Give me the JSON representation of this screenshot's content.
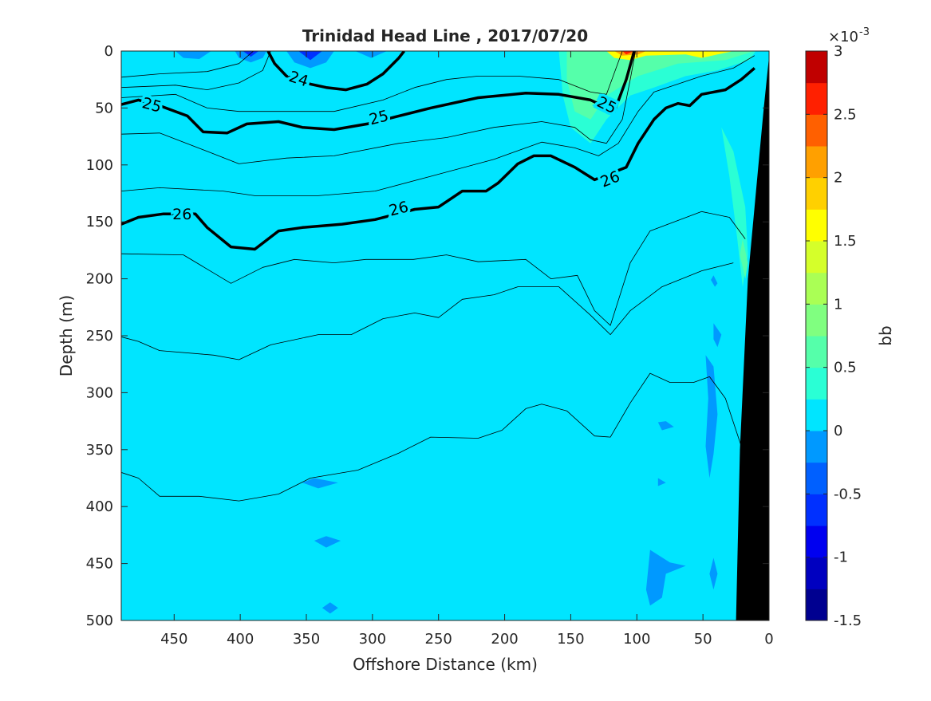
{
  "chart_data": {
    "type": "contour",
    "title": "Trinidad Head Line , 2017/07/20",
    "xlabel": "Offshore Distance (km)",
    "ylabel": "Depth (m)",
    "xlim": [
      490,
      0
    ],
    "xticks": [
      450,
      400,
      350,
      300,
      250,
      200,
      150,
      100,
      50,
      0
    ],
    "ylim": [
      0,
      500
    ],
    "yticks": [
      0,
      50,
      100,
      150,
      200,
      250,
      300,
      350,
      400,
      450,
      500
    ],
    "y_reversed": true,
    "colorbar": {
      "label": "bb",
      "scale_base": "×10",
      "scale_exponent": "-3",
      "clim": [
        -1.5,
        3
      ],
      "ticks": [
        -1.5,
        -1,
        -0.5,
        0,
        0.5,
        1,
        1.5,
        2,
        2.5,
        3
      ],
      "colors": [
        "#000090",
        "#0000c0",
        "#0000f0",
        "#0030ff",
        "#0060ff",
        "#0099ff",
        "#00e5ff",
        "#2affd5",
        "#55ffaa",
        "#80ff80",
        "#aaff55",
        "#d5ff2a",
        "#ffff00",
        "#ffd000",
        "#ffa000",
        "#ff6000",
        "#ff2000",
        "#c00000"
      ]
    },
    "field_value": 0.1,
    "patches": [
      {
        "value": -0.1,
        "x": [
          404,
          401,
          392,
          383,
          380
        ],
        "depth": [
          0,
          6,
          10,
          6,
          0
        ]
      },
      {
        "value": -0.6,
        "x": [
          398,
          392,
          386
        ],
        "depth": [
          0,
          5,
          0
        ]
      },
      {
        "value": -0.1,
        "x": [
          365,
          359,
          347,
          335,
          329
        ],
        "depth": [
          0,
          10,
          15,
          10,
          0
        ]
      },
      {
        "value": -0.6,
        "x": [
          356,
          347,
          338
        ],
        "depth": [
          0,
          8,
          0
        ]
      },
      {
        "value": -0.1,
        "x": [
          449,
          443,
          431,
          422
        ],
        "depth": [
          0,
          6,
          7,
          0
        ]
      },
      {
        "value": -0.1,
        "x": [
          313,
          301,
          289
        ],
        "depth": [
          0,
          6,
          0
        ]
      },
      {
        "value": 0.4,
        "x": [
          159,
          156,
          150,
          135,
          123,
          105,
          87,
          63,
          39,
          15,
          10
        ],
        "depth": [
          0,
          39,
          67,
          81,
          60,
          39,
          32,
          22,
          17,
          8,
          0
        ]
      },
      {
        "value": 0.7,
        "x": [
          153,
          153,
          147,
          135,
          123,
          99,
          69,
          33,
          11
        ],
        "depth": [
          0,
          25,
          53,
          60,
          39,
          22,
          11,
          8,
          0
        ]
      },
      {
        "value": 1.6,
        "x": [
          123,
          117,
          105,
          93,
          63,
          51,
          39,
          27
        ],
        "depth": [
          0,
          6,
          8,
          4,
          3,
          6,
          3,
          0
        ]
      },
      {
        "value": 2.1,
        "x": [
          117,
          111,
          99,
          93
        ],
        "depth": [
          0,
          4,
          3,
          0
        ]
      },
      {
        "value": 2.6,
        "x": [
          111,
          108,
          102
        ],
        "depth": [
          0,
          3,
          0
        ]
      },
      {
        "value": 0.4,
        "x": [
          36,
          27,
          18,
          16,
          20,
          24,
          30
        ],
        "depth": [
          67,
          88,
          137,
          179,
          207,
          165,
          110
        ]
      },
      {
        "value": 0.7,
        "x": [
          20,
          16,
          18,
          22
        ],
        "depth": [
          165,
          186,
          200,
          179
        ]
      },
      {
        "value": -0.1,
        "x": [
          48,
          42,
          39,
          42,
          45,
          48,
          46
        ],
        "depth": [
          267,
          277,
          319,
          354,
          375,
          347,
          305
        ]
      },
      {
        "value": -0.1,
        "x": [
          42,
          39,
          41,
          44
        ],
        "depth": [
          197,
          204,
          207,
          201
        ]
      },
      {
        "value": -0.1,
        "x": [
          42,
          36,
          39,
          42
        ],
        "depth": [
          239,
          249,
          260,
          253
        ]
      },
      {
        "value": -0.1,
        "x": [
          90,
          75,
          63,
          78,
          81,
          90,
          93
        ],
        "depth": [
          438,
          449,
          452,
          459,
          480,
          487,
          473
        ]
      },
      {
        "value": -0.1,
        "x": [
          353,
          344,
          326,
          341
        ],
        "depth": [
          379,
          375,
          379,
          384
        ]
      },
      {
        "value": -0.1,
        "x": [
          344,
          335,
          324,
          335
        ],
        "depth": [
          430,
          426,
          430,
          436
        ]
      },
      {
        "value": -0.1,
        "x": [
          338,
          332,
          326,
          332
        ],
        "depth": [
          489,
          484,
          489,
          494
        ]
      },
      {
        "value": -0.1,
        "x": [
          84,
          78,
          72,
          81
        ],
        "depth": [
          326,
          325,
          330,
          333
        ]
      },
      {
        "value": -0.1,
        "x": [
          84,
          78,
          84
        ],
        "depth": [
          375,
          379,
          382
        ]
      },
      {
        "value": -0.1,
        "x": [
          42,
          39,
          42,
          45
        ],
        "depth": [
          445,
          459,
          473,
          459
        ]
      }
    ],
    "contours": [
      {
        "level": 24,
        "x": [
          379,
          374,
          365,
          347,
          335,
          320,
          304,
          292,
          280,
          276
        ],
        "depth": [
          0,
          11,
          22,
          29,
          32,
          34,
          29,
          20,
          6,
          0
        ],
        "labels": [
          {
            "x": 356,
            "depth": 25
          }
        ]
      },
      {
        "level": 25,
        "x": [
          490,
          477,
          461,
          440,
          428,
          410,
          395,
          371,
          353,
          329,
          304,
          280,
          256,
          220,
          184,
          159,
          135,
          117,
          108,
          102
        ],
        "depth": [
          47,
          43,
          48,
          57,
          71,
          72,
          64,
          62,
          67,
          69,
          64,
          57,
          50,
          41,
          37,
          38,
          43,
          53,
          25,
          0
        ],
        "labels": [
          {
            "x": 467,
            "depth": 48
          },
          {
            "x": 295,
            "depth": 59
          },
          {
            "x": 123,
            "depth": 48
          }
        ]
      },
      {
        "level": 26,
        "x": [
          490,
          477,
          458,
          434,
          425,
          407,
          389,
          371,
          353,
          323,
          298,
          268,
          250,
          232,
          214,
          205,
          190,
          178,
          165,
          147,
          132,
          108,
          99,
          87,
          78,
          69,
          60,
          51,
          33,
          21,
          11
        ],
        "depth": [
          152,
          146,
          143,
          143,
          155,
          172,
          174,
          158,
          155,
          152,
          148,
          139,
          137,
          123,
          123,
          116,
          99,
          92,
          92,
          102,
          113,
          102,
          81,
          60,
          50,
          46,
          48,
          38,
          34,
          25,
          15
        ],
        "labels": [
          {
            "x": 444,
            "depth": 144
          },
          {
            "x": 280,
            "depth": 139
          },
          {
            "x": 120,
            "depth": 113
          }
        ]
      },
      {
        "x": [
          490,
          461,
          425,
          401,
          390
        ],
        "depth": [
          23,
          20,
          18,
          11,
          0
        ]
      },
      {
        "x": [
          490,
          449,
          425,
          401,
          383,
          377
        ],
        "depth": [
          32,
          30,
          34,
          28,
          17,
          0
        ]
      },
      {
        "x": [
          490,
          449,
          425,
          401,
          365,
          329,
          292,
          268,
          244,
          220,
          190,
          159,
          135,
          123,
          111
        ],
        "depth": [
          41,
          38,
          50,
          53,
          53,
          53,
          43,
          32,
          25,
          22,
          22,
          25,
          36,
          38,
          0
        ]
      },
      {
        "x": [
          490,
          461,
          425,
          401,
          365,
          329,
          280,
          244,
          208,
          172,
          147,
          135,
          123,
          111,
          105,
          101
        ],
        "depth": [
          73,
          72,
          88,
          99,
          94,
          92,
          81,
          76,
          67,
          62,
          67,
          78,
          81,
          60,
          25,
          0
        ]
      },
      {
        "x": [
          490,
          461,
          413,
          389,
          341,
          298,
          256,
          208,
          172,
          147,
          129,
          114,
          99,
          87,
          69,
          51,
          27,
          11
        ],
        "depth": [
          123,
          120,
          123,
          127,
          127,
          123,
          110,
          95,
          80,
          85,
          92,
          81,
          53,
          36,
          29,
          22,
          15,
          4
        ]
      },
      {
        "x": [
          490,
          443,
          407,
          383,
          359,
          329,
          305,
          269,
          244,
          220,
          184,
          165,
          145,
          132,
          120,
          105,
          90,
          51,
          30,
          18
        ],
        "depth": [
          178,
          179,
          204,
          190,
          183,
          186,
          183,
          183,
          179,
          185,
          183,
          200,
          197,
          228,
          241,
          186,
          158,
          141,
          146,
          165
        ]
      },
      {
        "x": [
          490,
          477,
          461,
          420,
          401,
          377,
          341,
          316,
          292,
          268,
          250,
          232,
          208,
          190,
          159,
          135,
          120,
          105,
          81,
          51,
          27
        ],
        "depth": [
          251,
          255,
          263,
          267,
          271,
          258,
          249,
          249,
          235,
          230,
          234,
          218,
          214,
          207,
          207,
          232,
          249,
          228,
          207,
          193,
          186
        ]
      },
      {
        "x": [
          490,
          477,
          461,
          431,
          401,
          371,
          347,
          311,
          280,
          256,
          220,
          202,
          184,
          172,
          153,
          132,
          120,
          105,
          90,
          75,
          57,
          45,
          33,
          21
        ],
        "depth": [
          370,
          375,
          391,
          391,
          395,
          389,
          375,
          368,
          353,
          339,
          340,
          333,
          314,
          310,
          316,
          338,
          339,
          309,
          283,
          291,
          291,
          286,
          305,
          347
        ]
      }
    ],
    "bottom": {
      "color": "#000000",
      "x": [
        25,
        22,
        16,
        8,
        4,
        0,
        0
      ],
      "depth": [
        500,
        350,
        200,
        100,
        50,
        5,
        500
      ]
    }
  }
}
